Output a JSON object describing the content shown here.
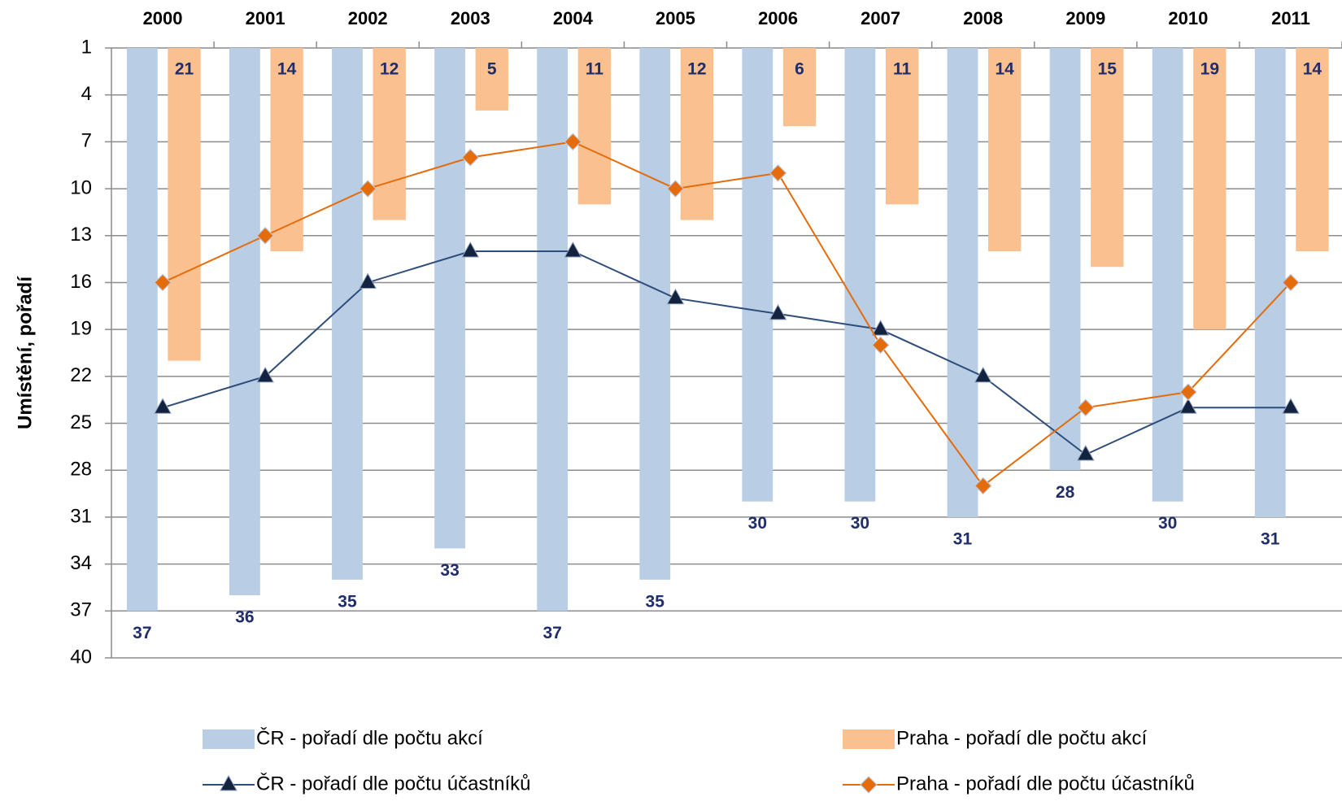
{
  "chart_data": {
    "type": "bar",
    "y_axis_label": "Umístění, pořadí",
    "categories": [
      "2000",
      "2001",
      "2002",
      "2003",
      "2004",
      "2005",
      "2006",
      "2007",
      "2008",
      "2009",
      "2010",
      "2011"
    ],
    "ylim": [
      1,
      40
    ],
    "y_inverted": true,
    "yticks": [
      1,
      4,
      7,
      10,
      13,
      16,
      19,
      22,
      25,
      28,
      31,
      34,
      37,
      40
    ],
    "grid": true,
    "series": [
      {
        "name": "ČR - pořadí dle počtu akcí",
        "type": "bar",
        "color": "#b9cde5",
        "label_color": "#1f2d6b",
        "values": [
          37,
          36,
          35,
          33,
          37,
          35,
          30,
          30,
          31,
          28,
          30,
          31
        ]
      },
      {
        "name": "Praha - pořadí dle počtu akcí",
        "type": "bar",
        "color": "#fac090",
        "label_color": "#1f2d6b",
        "values": [
          21,
          14,
          12,
          5,
          11,
          12,
          6,
          11,
          14,
          15,
          19,
          14
        ]
      },
      {
        "name": "ČR - pořadí dle počtu účastníků",
        "type": "line",
        "marker": "triangle",
        "color": "#2e4d7b",
        "marker_color": "#13233f",
        "values": [
          24,
          22,
          16,
          14,
          14,
          17,
          18,
          19,
          22,
          27,
          24,
          24
        ]
      },
      {
        "name": "Praha - pořadí dle počtu účastníků",
        "type": "line",
        "marker": "diamond",
        "color": "#e46c0a",
        "marker_color": "#e46c0a",
        "values": [
          16,
          13,
          10,
          8,
          7,
          10,
          9,
          20,
          29,
          24,
          23,
          16
        ]
      }
    ]
  }
}
